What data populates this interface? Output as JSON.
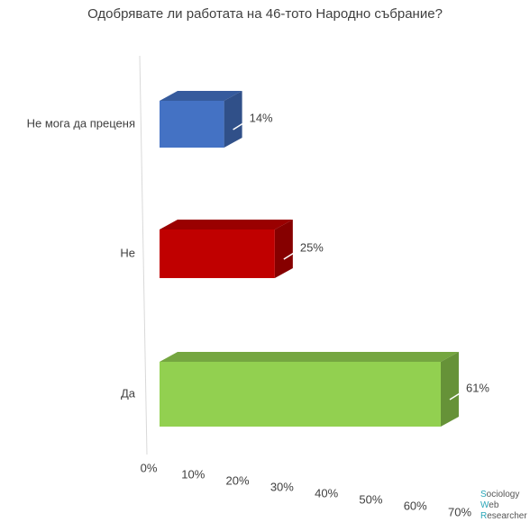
{
  "chart_data": {
    "type": "bar3d-horizontal",
    "title": "Одобрявате ли работата на 46-тото Народно събрание?",
    "categories": [
      "Не мога да преценя",
      "Не",
      "Да"
    ],
    "series": [
      {
        "name": null,
        "values": [
          14,
          25,
          61
        ],
        "value_labels": [
          "14%",
          "25%",
          "61%"
        ],
        "colors": [
          "#4472c4",
          "#c00000",
          "#92d050"
        ]
      }
    ],
    "xlim": [
      0,
      70
    ],
    "xticks": [
      {
        "value": 0,
        "label": "0%"
      },
      {
        "value": 10,
        "label": "10%"
      },
      {
        "value": 20,
        "label": "20%"
      },
      {
        "value": 30,
        "label": "30%"
      },
      {
        "value": 40,
        "label": "40%"
      },
      {
        "value": 50,
        "label": "50%"
      },
      {
        "value": 60,
        "label": "60%"
      },
      {
        "value": 70,
        "label": "70%"
      }
    ],
    "watermark": [
      "Sociology",
      "Web",
      "Researcher"
    ]
  }
}
